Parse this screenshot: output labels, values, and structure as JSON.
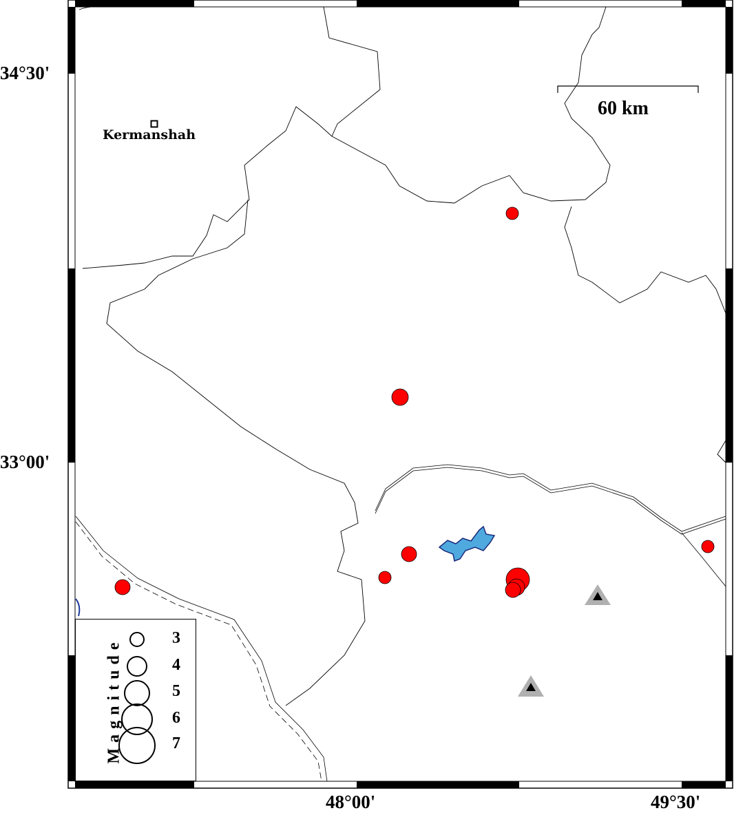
{
  "map": {
    "lat_labels": [
      "34°30'",
      "33°00'"
    ],
    "lon_labels": [
      "48°00'",
      "49°30'"
    ],
    "city": {
      "name": "Kermanshah"
    },
    "scale_bar": {
      "label": "60 km"
    },
    "colors": {
      "event_fill": "#ff0000",
      "water": "#4fa9df",
      "station_outer": "#b0b0b0",
      "station_inner": "#000000"
    },
    "legend": {
      "title": "Magnitude",
      "values": [
        "3",
        "4",
        "5",
        "6",
        "7"
      ]
    }
  }
}
